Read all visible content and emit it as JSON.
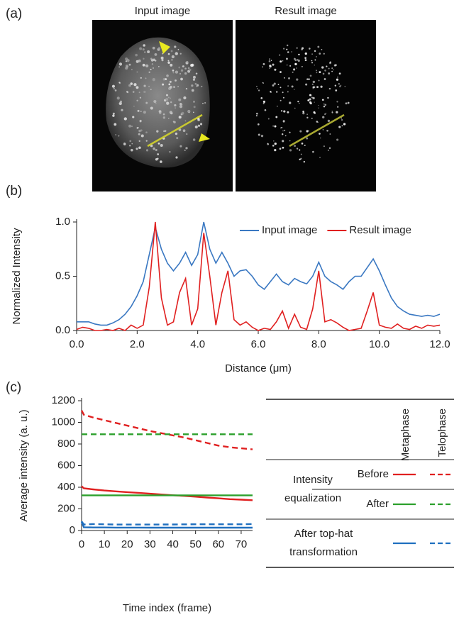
{
  "panel_labels": [
    "(a)",
    "(b)",
    "(c)"
  ],
  "images": [
    "Input image",
    "Result image"
  ],
  "chart_data": [
    {
      "type": "line",
      "xlabel": "Distance (μm)",
      "ylabel": "Normalized Intensity",
      "x": [
        0,
        0.2,
        0.4,
        0.6,
        0.8,
        1.0,
        1.2,
        1.4,
        1.6,
        1.8,
        2.0,
        2.2,
        2.4,
        2.6,
        2.8,
        3.0,
        3.2,
        3.4,
        3.6,
        3.8,
        4.0,
        4.2,
        4.4,
        4.6,
        4.8,
        5.0,
        5.2,
        5.4,
        5.6,
        5.8,
        6.0,
        6.2,
        6.4,
        6.6,
        6.8,
        7.0,
        7.2,
        7.4,
        7.6,
        7.8,
        8.0,
        8.2,
        8.4,
        8.6,
        8.8,
        9.0,
        9.2,
        9.4,
        9.6,
        9.8,
        10.0,
        10.2,
        10.4,
        10.6,
        10.8,
        11.0,
        11.2,
        11.4,
        11.6,
        11.8,
        12.0
      ],
      "series": [
        {
          "name": "Input image",
          "color": "#3a78c2",
          "values": [
            0.08,
            0.08,
            0.08,
            0.06,
            0.05,
            0.05,
            0.07,
            0.1,
            0.15,
            0.22,
            0.32,
            0.45,
            0.7,
            0.95,
            0.75,
            0.62,
            0.55,
            0.62,
            0.72,
            0.6,
            0.7,
            1.0,
            0.75,
            0.62,
            0.72,
            0.62,
            0.5,
            0.55,
            0.56,
            0.5,
            0.42,
            0.38,
            0.45,
            0.52,
            0.45,
            0.42,
            0.48,
            0.45,
            0.43,
            0.5,
            0.63,
            0.5,
            0.45,
            0.42,
            0.38,
            0.45,
            0.5,
            0.5,
            0.58,
            0.66,
            0.55,
            0.42,
            0.3,
            0.22,
            0.18,
            0.15,
            0.14,
            0.13,
            0.14,
            0.13,
            0.15
          ]
        },
        {
          "name": "Result image",
          "color": "#e02020",
          "values": [
            0.01,
            0.03,
            0.02,
            0.0,
            0.0,
            0.01,
            0.0,
            0.02,
            0.0,
            0.05,
            0.02,
            0.05,
            0.4,
            1.0,
            0.3,
            0.05,
            0.08,
            0.35,
            0.48,
            0.05,
            0.2,
            0.9,
            0.5,
            0.05,
            0.35,
            0.55,
            0.1,
            0.05,
            0.08,
            0.03,
            0.0,
            0.02,
            0.01,
            0.08,
            0.18,
            0.02,
            0.15,
            0.03,
            0.01,
            0.2,
            0.55,
            0.08,
            0.1,
            0.07,
            0.03,
            0.0,
            0.01,
            0.02,
            0.18,
            0.35,
            0.05,
            0.03,
            0.02,
            0.06,
            0.02,
            0.01,
            0.04,
            0.02,
            0.05,
            0.04,
            0.05
          ]
        }
      ],
      "xlim": [
        0,
        12
      ],
      "xticks": [
        {
          "value": 0,
          "label": "0.0"
        },
        {
          "value": 2,
          "label": "2.0"
        },
        {
          "value": 4,
          "label": "4.0"
        },
        {
          "value": 6,
          "label": "6.0"
        },
        {
          "value": 8,
          "label": "8.0"
        },
        {
          "value": 10,
          "label": "10.0"
        },
        {
          "value": 12,
          "label": "12.0"
        }
      ],
      "ylim": [
        0,
        1
      ],
      "yticks": [
        {
          "value": 0,
          "label": "0.0"
        },
        {
          "value": 0.5,
          "label": "0.5"
        },
        {
          "value": 1,
          "label": "1.0"
        }
      ],
      "grid": false,
      "legend": "upper right"
    },
    {
      "type": "line",
      "xlabel": "Time index (frame)",
      "ylabel": "Average intensity (a. u.)",
      "x": [
        0,
        1,
        5,
        10,
        15,
        20,
        25,
        30,
        35,
        40,
        45,
        50,
        55,
        60,
        65,
        70,
        75
      ],
      "series": [
        {
          "color": "#e02020",
          "dash": false,
          "values": [
            410,
            390,
            380,
            370,
            362,
            355,
            348,
            340,
            333,
            326,
            320,
            313,
            305,
            298,
            290,
            285,
            280
          ]
        },
        {
          "color": "#e02020",
          "dash": true,
          "values": [
            1110,
            1070,
            1045,
            1020,
            995,
            970,
            945,
            920,
            900,
            880,
            860,
            835,
            810,
            785,
            770,
            760,
            750
          ]
        },
        {
          "color": "#2ca02c",
          "dash": false,
          "values": [
            325,
            325,
            325,
            325,
            325,
            325,
            325,
            325,
            325,
            325,
            325,
            325,
            325,
            325,
            325,
            325,
            325
          ]
        },
        {
          "color": "#2ca02c",
          "dash": true,
          "values": [
            890,
            890,
            890,
            890,
            890,
            890,
            890,
            890,
            890,
            890,
            890,
            890,
            890,
            890,
            890,
            890,
            890
          ]
        },
        {
          "color": "#1f6fbf",
          "dash": false,
          "values": [
            80,
            30,
            28,
            28,
            27,
            27,
            27,
            26,
            26,
            26,
            26,
            26,
            26,
            26,
            26,
            26,
            26
          ]
        },
        {
          "color": "#1f6fbf",
          "dash": true,
          "values": [
            85,
            55,
            60,
            58,
            55,
            55,
            55,
            55,
            56,
            56,
            57,
            58,
            58,
            58,
            58,
            58,
            60
          ]
        }
      ],
      "xlim": [
        0,
        75
      ],
      "xticks": [
        0,
        10,
        20,
        30,
        40,
        50,
        60,
        70
      ],
      "ylim": [
        0,
        1200
      ],
      "yticks": [
        0,
        200,
        400,
        600,
        800,
        1000,
        1200
      ],
      "grid": false,
      "legend_table": {
        "columns": [
          "Metaphase",
          "Telophase"
        ],
        "groups": [
          {
            "label": "Intensity equalization",
            "rows": [
              "Before",
              "After"
            ]
          },
          {
            "label": "After top-hat transformation",
            "rows": [
              null
            ]
          }
        ]
      }
    }
  ]
}
